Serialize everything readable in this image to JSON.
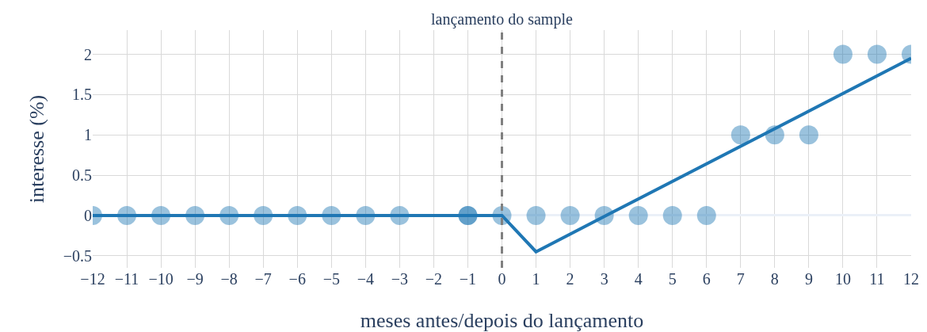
{
  "chart_data": {
    "type": "scatter",
    "xlabel": "meses antes/depois do lançamento",
    "ylabel": "interesse (%)",
    "series": [
      {
        "color": "#1f77b4",
        "marker": "circle",
        "x": [
          -12,
          -11,
          -10,
          -9,
          -8,
          -7,
          -6,
          -5,
          -4,
          -3,
          -1,
          -1,
          0,
          1,
          2,
          3,
          4,
          5,
          6,
          7,
          8,
          9,
          10,
          11,
          12
        ],
        "values": [
          0,
          0,
          0,
          0,
          0,
          0,
          0,
          0,
          0,
          0,
          0,
          0,
          0,
          0,
          0,
          0,
          0,
          0,
          0,
          1,
          1,
          1,
          2,
          2,
          2
        ]
      },
      {
        "type": "line",
        "color": "#1f77b4",
        "marker": "none",
        "line_style": "solid",
        "x": [
          -12,
          0,
          1,
          12
        ],
        "values": [
          0,
          0,
          -0.45,
          1.95
        ]
      }
    ],
    "ref_lines": [
      {
        "axis": "x",
        "value": 0,
        "label": "lançamento do sample",
        "color": "#808080",
        "line_style": "dashed"
      }
    ],
    "xlim": [
      -12,
      12
    ],
    "xticks": [
      -12,
      -11,
      -10,
      -9,
      -8,
      -7,
      -6,
      -5,
      -4,
      -3,
      -2,
      -1,
      0,
      1,
      2,
      3,
      4,
      5,
      6,
      7,
      8,
      9,
      10,
      11,
      12
    ],
    "ylim": [
      -0.65,
      2.3
    ],
    "yticks": [
      {
        "value": -0.5,
        "label": "−0.5"
      },
      0,
      0.5,
      1,
      1.5,
      2
    ],
    "grid": true
  }
}
